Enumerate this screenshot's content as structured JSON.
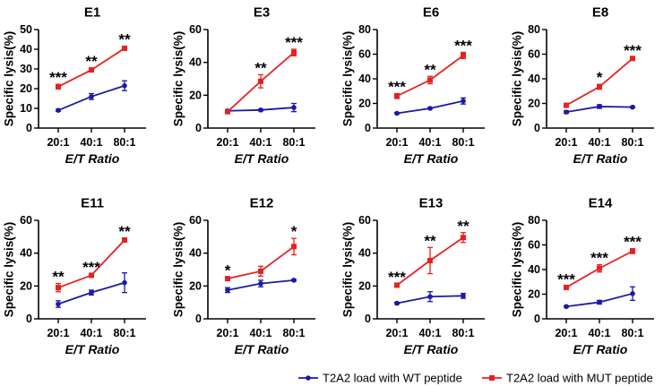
{
  "colors": {
    "wt": "#1a1aa6",
    "mut": "#e8201f",
    "axis": "#000000"
  },
  "legend": {
    "wt_label": "T2A2 load with WT peptide",
    "mut_label": "T2A2 load with MUT peptide"
  },
  "chart_data": [
    {
      "type": "line",
      "title": "E1",
      "categories": [
        "20:1",
        "40:1",
        "80:1"
      ],
      "xlabel": "E/T Ratio",
      "ylabel": "Specific lysis(%)",
      "ylim": [
        0,
        50
      ],
      "yticks": [
        0,
        10,
        20,
        30,
        40,
        50
      ],
      "series": [
        {
          "name": "T2A2 load with WT peptide",
          "values": [
            9,
            16,
            21.5
          ],
          "errors": [
            0.5,
            1.5,
            2.5
          ]
        },
        {
          "name": "T2A2 load with MUT peptide",
          "values": [
            21,
            29.5,
            40.5
          ],
          "errors": [
            1.2,
            1,
            1
          ]
        }
      ],
      "significance": [
        "***",
        "**",
        "**"
      ]
    },
    {
      "type": "line",
      "title": "E3",
      "categories": [
        "20:1",
        "40:1",
        "80:1"
      ],
      "xlabel": "E/T Ratio",
      "ylabel": "Specific lysis(%)",
      "ylim": [
        0,
        60
      ],
      "yticks": [
        0,
        20,
        40,
        60
      ],
      "series": [
        {
          "name": "T2A2 load with WT peptide",
          "values": [
            10.5,
            11,
            12.5
          ],
          "errors": [
            0.5,
            0.5,
            2.5
          ]
        },
        {
          "name": "T2A2 load with MUT peptide",
          "values": [
            10,
            28.5,
            46
          ],
          "errors": [
            1,
            4,
            2
          ]
        }
      ],
      "significance": [
        "",
        "**",
        "***"
      ]
    },
    {
      "type": "line",
      "title": "E6",
      "categories": [
        "20:1",
        "40:1",
        "80:1"
      ],
      "xlabel": "E/T Ratio",
      "ylabel": "Specific lysis(%)",
      "ylim": [
        0,
        80
      ],
      "yticks": [
        0,
        20,
        40,
        60,
        80
      ],
      "series": [
        {
          "name": "T2A2 load with WT peptide",
          "values": [
            12,
            16,
            22
          ],
          "errors": [
            0.5,
            0.5,
            2.5
          ]
        },
        {
          "name": "T2A2 load with MUT peptide",
          "values": [
            26,
            39,
            59
          ],
          "errors": [
            2,
            3,
            2.5
          ]
        }
      ],
      "significance": [
        "***",
        "**",
        "***"
      ]
    },
    {
      "type": "line",
      "title": "E8",
      "categories": [
        "20:1",
        "40:1",
        "80:1"
      ],
      "xlabel": "E/T Ratio",
      "ylabel": "Specific lysis(%)",
      "ylim": [
        0,
        80
      ],
      "yticks": [
        0,
        20,
        40,
        60,
        80
      ],
      "series": [
        {
          "name": "T2A2 load with WT peptide",
          "values": [
            13,
            17.5,
            17
          ],
          "errors": [
            1,
            1.5,
            0.5
          ]
        },
        {
          "name": "T2A2 load with MUT peptide",
          "values": [
            18.5,
            33.5,
            56.5
          ],
          "errors": [
            1.5,
            2,
            1
          ]
        }
      ],
      "significance": [
        "",
        "*",
        "***"
      ]
    },
    {
      "type": "line",
      "title": "E11",
      "categories": [
        "20:1",
        "40:1",
        "80:1"
      ],
      "xlabel": "E/T Ratio",
      "ylabel": "Specific lysis(%)",
      "ylim": [
        0,
        60
      ],
      "yticks": [
        0,
        20,
        40,
        60
      ],
      "series": [
        {
          "name": "T2A2 load with WT peptide",
          "values": [
            9,
            16,
            22
          ],
          "errors": [
            2,
            1.5,
            6
          ]
        },
        {
          "name": "T2A2 load with MUT peptide",
          "values": [
            19,
            26.5,
            48
          ],
          "errors": [
            2.5,
            0.8,
            1
          ]
        }
      ],
      "significance": [
        "**",
        "***",
        "**"
      ]
    },
    {
      "type": "line",
      "title": "E12",
      "categories": [
        "20:1",
        "40:1",
        "80:1"
      ],
      "xlabel": "E/T Ratio",
      "ylabel": "Specific lysis(%)",
      "ylim": [
        0,
        60
      ],
      "yticks": [
        0,
        20,
        40,
        60
      ],
      "series": [
        {
          "name": "T2A2 load with WT peptide",
          "values": [
            17.5,
            21.5,
            23.5
          ],
          "errors": [
            1.5,
            2,
            0.5
          ]
        },
        {
          "name": "T2A2 load with MUT peptide",
          "values": [
            24.5,
            29,
            44
          ],
          "errors": [
            1,
            3,
            5
          ]
        }
      ],
      "significance": [
        "*",
        "",
        "*"
      ]
    },
    {
      "type": "line",
      "title": "E13",
      "categories": [
        "20:1",
        "40:1",
        "80:1"
      ],
      "xlabel": "E/T Ratio",
      "ylabel": "Specific lysis(%)",
      "ylim": [
        0,
        60
      ],
      "yticks": [
        0,
        20,
        40,
        60
      ],
      "series": [
        {
          "name": "T2A2 load with WT peptide",
          "values": [
            9.5,
            13.5,
            14
          ],
          "errors": [
            0.5,
            3,
            1.5
          ]
        },
        {
          "name": "T2A2 load with MUT peptide",
          "values": [
            20.5,
            35.5,
            49.5
          ],
          "errors": [
            0.8,
            8,
            3
          ]
        }
      ],
      "significance": [
        "***",
        "**",
        "**"
      ]
    },
    {
      "type": "line",
      "title": "E14",
      "categories": [
        "20:1",
        "40:1",
        "80:1"
      ],
      "xlabel": "E/T Ratio",
      "ylabel": "Specific lysis(%)",
      "ylim": [
        0,
        80
      ],
      "yticks": [
        0,
        20,
        40,
        60,
        80
      ],
      "series": [
        {
          "name": "T2A2 load with WT peptide",
          "values": [
            10,
            13.5,
            20.5
          ],
          "errors": [
            0.5,
            1.5,
            5.5
          ]
        },
        {
          "name": "T2A2 load with MUT peptide",
          "values": [
            25.5,
            41,
            55
          ],
          "errors": [
            1.2,
            3,
            2
          ]
        }
      ],
      "significance": [
        "***",
        "***",
        "***"
      ]
    }
  ]
}
